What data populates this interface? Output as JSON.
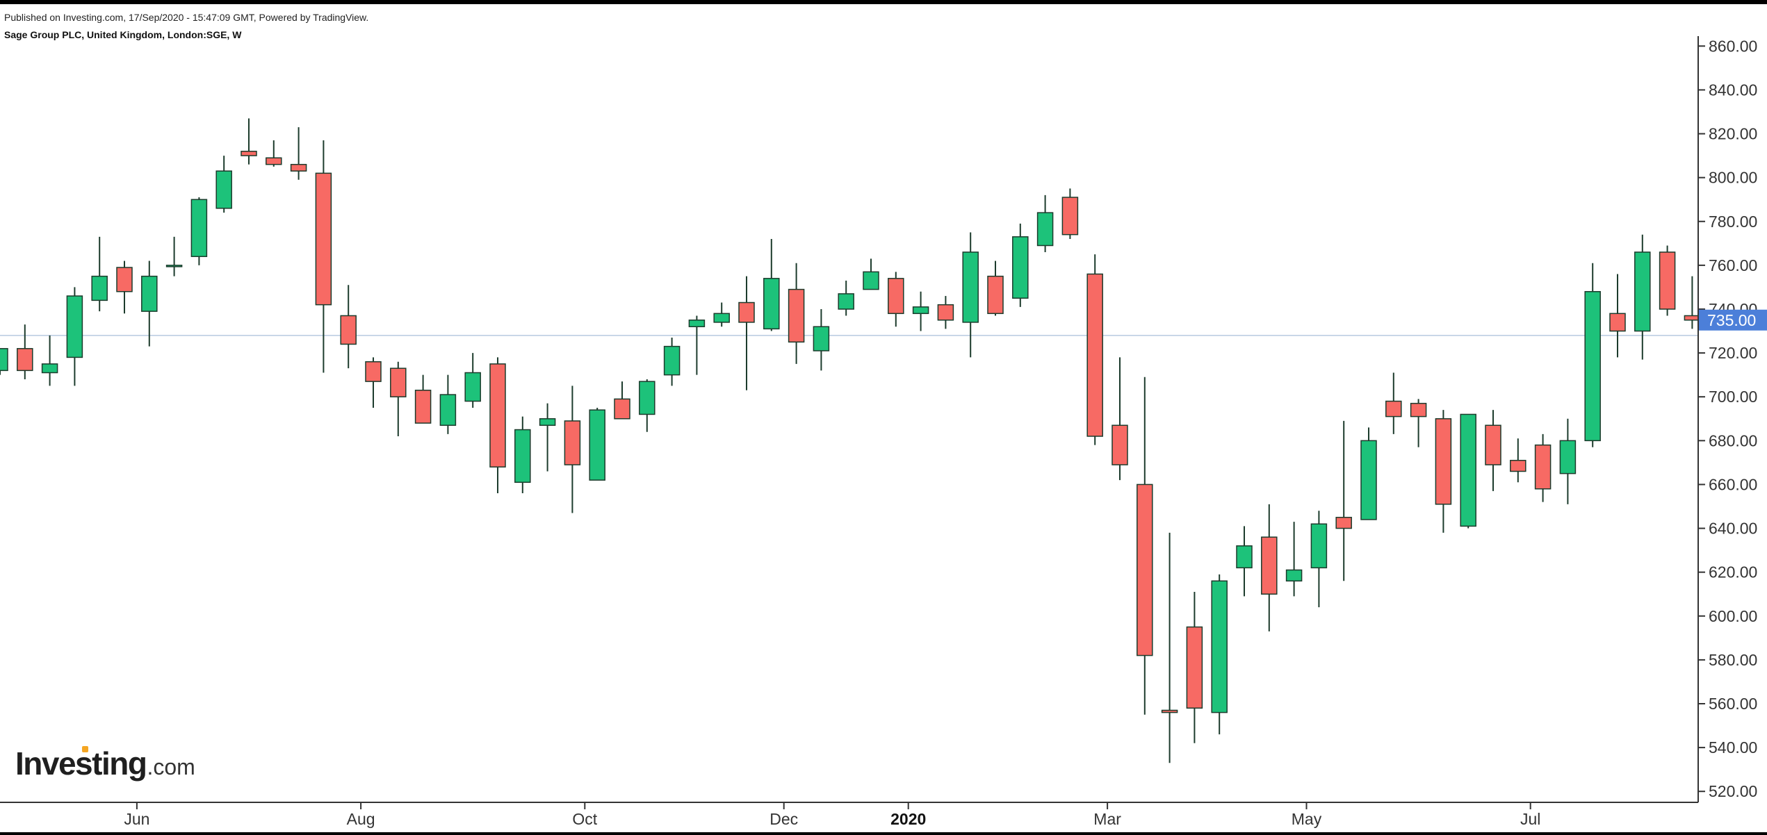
{
  "header": {
    "publish_note": "Published on Investing.com, 17/Sep/2020 - 15:47:09 GMT, Powered by TradingView.",
    "symbol_line": "Sage Group PLC, United Kingdom, London:SGE, W"
  },
  "logo": {
    "brand": "Investing",
    "domain_suffix": ".com",
    "dot_color": "#f5a623"
  },
  "chart_data": {
    "type": "candlestick",
    "interval": "W",
    "y_range": [
      515,
      862
    ],
    "y_ticks": [
      "520.00",
      "540.00",
      "560.00",
      "580.00",
      "600.00",
      "620.00",
      "640.00",
      "660.00",
      "680.00",
      "700.00",
      "720.00",
      "740.00",
      "760.00",
      "780.00",
      "800.00",
      "820.00",
      "840.00",
      "860.00"
    ],
    "y_tick_values": [
      520,
      540,
      560,
      580,
      600,
      620,
      640,
      660,
      680,
      700,
      720,
      740,
      760,
      780,
      800,
      820,
      840,
      860
    ],
    "x_labels": [
      {
        "text": "Jun",
        "index": 5.5,
        "major": false
      },
      {
        "text": "Aug",
        "index": 14.5,
        "major": false
      },
      {
        "text": "Oct",
        "index": 23.5,
        "major": false
      },
      {
        "text": "Dec",
        "index": 31.5,
        "major": false
      },
      {
        "text": "2020",
        "index": 36.5,
        "major": true
      },
      {
        "text": "Mar",
        "index": 44.5,
        "major": false
      },
      {
        "text": "May",
        "index": 52.5,
        "major": false
      },
      {
        "text": "Jul",
        "index": 61.5,
        "major": false
      }
    ],
    "last_price": 735.0,
    "last_price_label": "735.00",
    "current_price_line": 728,
    "colors": {
      "up": "#1dc27a",
      "down": "#f76a64",
      "wick": "#1c3b2c",
      "price_tag": "#4c7fd9",
      "price_line": "#b7c9e0",
      "axis": "#333333"
    },
    "candles": [
      {
        "o": 712,
        "h": 722,
        "l": 710,
        "c": 722
      },
      {
        "o": 722,
        "h": 733,
        "l": 708,
        "c": 712
      },
      {
        "o": 711,
        "h": 728,
        "l": 705,
        "c": 715
      },
      {
        "o": 718,
        "h": 750,
        "l": 705,
        "c": 746
      },
      {
        "o": 744,
        "h": 773,
        "l": 739,
        "c": 755
      },
      {
        "o": 759,
        "h": 762,
        "l": 738,
        "c": 748
      },
      {
        "o": 739,
        "h": 762,
        "l": 723,
        "c": 755
      },
      {
        "o": 760,
        "h": 773,
        "l": 755,
        "c": 760
      },
      {
        "o": 764,
        "h": 791,
        "l": 760,
        "c": 790
      },
      {
        "o": 786,
        "h": 810,
        "l": 784,
        "c": 803
      },
      {
        "o": 812,
        "h": 827,
        "l": 806,
        "c": 810
      },
      {
        "o": 809,
        "h": 817,
        "l": 805,
        "c": 806
      },
      {
        "o": 806,
        "h": 823,
        "l": 799,
        "c": 803
      },
      {
        "o": 802,
        "h": 817,
        "l": 711,
        "c": 742
      },
      {
        "o": 737,
        "h": 751,
        "l": 713,
        "c": 724
      },
      {
        "o": 716,
        "h": 718,
        "l": 695,
        "c": 707
      },
      {
        "o": 713,
        "h": 716,
        "l": 682,
        "c": 700
      },
      {
        "o": 703,
        "h": 710,
        "l": 688,
        "c": 688
      },
      {
        "o": 687,
        "h": 710,
        "l": 683,
        "c": 701
      },
      {
        "o": 698,
        "h": 720,
        "l": 695,
        "c": 711
      },
      {
        "o": 715,
        "h": 718,
        "l": 656,
        "c": 668
      },
      {
        "o": 661,
        "h": 691,
        "l": 656,
        "c": 685
      },
      {
        "o": 687,
        "h": 697,
        "l": 666,
        "c": 690
      },
      {
        "o": 689,
        "h": 705,
        "l": 647,
        "c": 669
      },
      {
        "o": 662,
        "h": 695,
        "l": 662,
        "c": 694
      },
      {
        "o": 699,
        "h": 707,
        "l": 690,
        "c": 690
      },
      {
        "o": 692,
        "h": 708,
        "l": 684,
        "c": 707
      },
      {
        "o": 710,
        "h": 727,
        "l": 705,
        "c": 723
      },
      {
        "o": 732,
        "h": 737,
        "l": 710,
        "c": 735
      },
      {
        "o": 734,
        "h": 743,
        "l": 732,
        "c": 738
      },
      {
        "o": 743,
        "h": 755,
        "l": 703,
        "c": 734
      },
      {
        "o": 731,
        "h": 772,
        "l": 730,
        "c": 754
      },
      {
        "o": 749,
        "h": 761,
        "l": 715,
        "c": 725
      },
      {
        "o": 721,
        "h": 740,
        "l": 712,
        "c": 732
      },
      {
        "o": 740,
        "h": 753,
        "l": 737,
        "c": 747
      },
      {
        "o": 749,
        "h": 763,
        "l": 749,
        "c": 757
      },
      {
        "o": 754,
        "h": 757,
        "l": 732,
        "c": 738
      },
      {
        "o": 738,
        "h": 748,
        "l": 730,
        "c": 741
      },
      {
        "o": 742,
        "h": 746,
        "l": 731,
        "c": 735
      },
      {
        "o": 734,
        "h": 775,
        "l": 718,
        "c": 766
      },
      {
        "o": 755,
        "h": 762,
        "l": 737,
        "c": 738
      },
      {
        "o": 745,
        "h": 779,
        "l": 741,
        "c": 773
      },
      {
        "o": 769,
        "h": 792,
        "l": 766,
        "c": 784
      },
      {
        "o": 791,
        "h": 795,
        "l": 772,
        "c": 774
      },
      {
        "o": 756,
        "h": 765,
        "l": 678,
        "c": 682
      },
      {
        "o": 687,
        "h": 718,
        "l": 662,
        "c": 669
      },
      {
        "o": 660,
        "h": 709,
        "l": 555,
        "c": 582
      },
      {
        "o": 557,
        "h": 638,
        "l": 533,
        "c": 556
      },
      {
        "o": 595,
        "h": 611,
        "l": 542,
        "c": 558
      },
      {
        "o": 556,
        "h": 619,
        "l": 546,
        "c": 616
      },
      {
        "o": 622,
        "h": 641,
        "l": 609,
        "c": 632
      },
      {
        "o": 636,
        "h": 651,
        "l": 593,
        "c": 610
      },
      {
        "o": 616,
        "h": 643,
        "l": 609,
        "c": 621
      },
      {
        "o": 622,
        "h": 648,
        "l": 604,
        "c": 642
      },
      {
        "o": 645,
        "h": 689,
        "l": 616,
        "c": 640
      },
      {
        "o": 644,
        "h": 686,
        "l": 644,
        "c": 680
      },
      {
        "o": 698,
        "h": 711,
        "l": 683,
        "c": 691
      },
      {
        "o": 697,
        "h": 699,
        "l": 677,
        "c": 691
      },
      {
        "o": 690,
        "h": 694,
        "l": 638,
        "c": 651
      },
      {
        "o": 641,
        "h": 692,
        "l": 640,
        "c": 692
      },
      {
        "o": 687,
        "h": 694,
        "l": 657,
        "c": 669
      },
      {
        "o": 671,
        "h": 681,
        "l": 661,
        "c": 666
      },
      {
        "o": 678,
        "h": 683,
        "l": 652,
        "c": 658
      },
      {
        "o": 665,
        "h": 690,
        "l": 651,
        "c": 680
      },
      {
        "o": 680,
        "h": 761,
        "l": 677,
        "c": 748
      },
      {
        "o": 738,
        "h": 756,
        "l": 718,
        "c": 730
      },
      {
        "o": 730,
        "h": 774,
        "l": 717,
        "c": 766
      },
      {
        "o": 766,
        "h": 769,
        "l": 737,
        "c": 740
      },
      {
        "o": 737,
        "h": 755,
        "l": 731,
        "c": 735
      }
    ]
  }
}
